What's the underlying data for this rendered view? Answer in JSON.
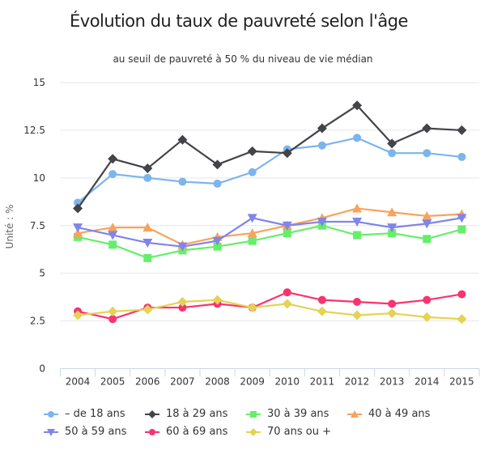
{
  "chart_data": {
    "type": "line",
    "title": "Évolution du taux de pauvreté selon l'âge",
    "subtitle": "au seuil de pauvreté à 50 % du niveau de vie médian",
    "xlabel": "",
    "ylabel": "Unité : %",
    "ylim": [
      0,
      15
    ],
    "yticks": [
      "0",
      "2.5",
      "5",
      "7.5",
      "10",
      "12.5",
      "15"
    ],
    "grid": true,
    "legend_position": "bottom",
    "categories": [
      "2004",
      "2005",
      "2006",
      "2007",
      "2008",
      "2009",
      "2010",
      "2011",
      "2012",
      "2013",
      "2014",
      "2015"
    ],
    "series": [
      {
        "name": "– de 18 ans",
        "color": "#7cb5ec",
        "marker": "circle",
        "values": [
          8.7,
          10.2,
          10.0,
          9.8,
          9.7,
          10.3,
          11.5,
          11.7,
          12.1,
          11.3,
          11.3,
          11.1
        ]
      },
      {
        "name": "18 à 29 ans",
        "color": "#434348",
        "marker": "diamond",
        "values": [
          8.4,
          11.0,
          10.5,
          12.0,
          10.7,
          11.4,
          11.3,
          12.6,
          13.8,
          11.8,
          12.6,
          12.5
        ]
      },
      {
        "name": "30 à 39 ans",
        "color": "#66ee6a",
        "marker": "square",
        "values": [
          6.9,
          6.5,
          5.8,
          6.2,
          6.4,
          6.7,
          7.1,
          7.5,
          7.0,
          7.1,
          6.8,
          7.3
        ]
      },
      {
        "name": "40 à 49 ans",
        "color": "#f7a35c",
        "marker": "triangle",
        "values": [
          7.1,
          7.4,
          7.4,
          6.5,
          6.9,
          7.1,
          7.5,
          7.9,
          8.4,
          8.2,
          8.0,
          8.1
        ]
      },
      {
        "name": "50 à 59 ans",
        "color": "#8085e9",
        "marker": "triangle-down",
        "values": [
          7.4,
          7.0,
          6.6,
          6.4,
          6.7,
          7.9,
          7.5,
          7.7,
          7.7,
          7.4,
          7.6,
          7.9
        ]
      },
      {
        "name": "60 à 69 ans",
        "color": "#f7346f",
        "marker": "circle",
        "values": [
          3.0,
          2.6,
          3.2,
          3.2,
          3.4,
          3.2,
          4.0,
          3.6,
          3.5,
          3.4,
          3.6,
          3.9
        ]
      },
      {
        "name": "70 ans ou +",
        "color": "#e4d354",
        "marker": "diamond",
        "values": [
          2.8,
          3.0,
          3.1,
          3.5,
          3.6,
          3.2,
          3.4,
          3.0,
          2.8,
          2.9,
          2.7,
          2.6
        ]
      }
    ]
  }
}
